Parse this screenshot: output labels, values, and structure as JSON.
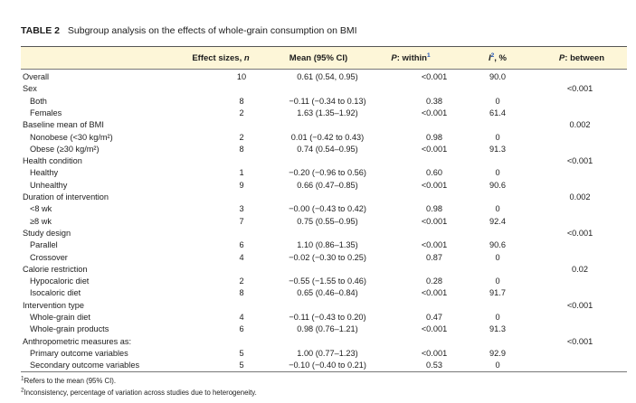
{
  "table": {
    "label": "TABLE 2",
    "caption": "Subgroup analysis on the effects of whole-grain consumption on BMI"
  },
  "header": {
    "effect_sizes": "Effect sizes, ",
    "effect_sizes_n": "n",
    "mean": "Mean (95% CI)",
    "p_within_p": "P",
    "p_within": ": within",
    "p_within_sup": "1",
    "i2_i": "I",
    "i2_sup": "2",
    "i2": ", %",
    "p_between_p": "P",
    "p_between": ": between"
  },
  "rows": [
    {
      "label": "Overall",
      "sub": false,
      "n": "10",
      "mean": "0.61 (0.54, 0.95)",
      "p_within": "<0.001",
      "i2": "90.0",
      "p_between": ""
    },
    {
      "label": "Sex",
      "sub": false,
      "n": "",
      "mean": "",
      "p_within": "",
      "i2": "",
      "p_between": "<0.001"
    },
    {
      "label": "Both",
      "sub": true,
      "n": "8",
      "mean": "−0.11 (−0.34 to 0.13)",
      "p_within": "0.38",
      "i2": "0",
      "p_between": ""
    },
    {
      "label": "Females",
      "sub": true,
      "n": "2",
      "mean": "1.63 (1.35–1.92)",
      "p_within": "<0.001",
      "i2": "61.4",
      "p_between": ""
    },
    {
      "label": "Baseline mean of BMI",
      "sub": false,
      "n": "",
      "mean": "",
      "p_within": "",
      "i2": "",
      "p_between": "0.002"
    },
    {
      "label": "Nonobese (<30 kg/m²)",
      "sub": true,
      "n": "2",
      "mean": "0.01 (−0.42 to 0.43)",
      "p_within": "0.98",
      "i2": "0",
      "p_between": ""
    },
    {
      "label": "Obese (≥30 kg/m²)",
      "sub": true,
      "n": "8",
      "mean": "0.74 (0.54–0.95)",
      "p_within": "<0.001",
      "i2": "91.3",
      "p_between": ""
    },
    {
      "label": "Health condition",
      "sub": false,
      "n": "",
      "mean": "",
      "p_within": "",
      "i2": "",
      "p_between": "<0.001"
    },
    {
      "label": "Healthy",
      "sub": true,
      "n": "1",
      "mean": "−0.20 (−0.96 to 0.56)",
      "p_within": "0.60",
      "i2": "0",
      "p_between": ""
    },
    {
      "label": "Unhealthy",
      "sub": true,
      "n": "9",
      "mean": "0.66 (0.47–0.85)",
      "p_within": "<0.001",
      "i2": "90.6",
      "p_between": ""
    },
    {
      "label": "Duration of intervention",
      "sub": false,
      "n": "",
      "mean": "",
      "p_within": "",
      "i2": "",
      "p_between": "0.002"
    },
    {
      "label": "<8 wk",
      "sub": true,
      "n": "3",
      "mean": "−0.00 (−0.43 to 0.42)",
      "p_within": "0.98",
      "i2": "0",
      "p_between": ""
    },
    {
      "label": "≥8 wk",
      "sub": true,
      "n": "7",
      "mean": "0.75 (0.55–0.95)",
      "p_within": "<0.001",
      "i2": "92.4",
      "p_between": ""
    },
    {
      "label": "Study design",
      "sub": false,
      "n": "",
      "mean": "",
      "p_within": "",
      "i2": "",
      "p_between": "<0.001"
    },
    {
      "label": "Parallel",
      "sub": true,
      "n": "6",
      "mean": "1.10 (0.86–1.35)",
      "p_within": "<0.001",
      "i2": "90.6",
      "p_between": ""
    },
    {
      "label": "Crossover",
      "sub": true,
      "n": "4",
      "mean": "−0.02 (−0.30 to 0.25)",
      "p_within": "0.87",
      "i2": "0",
      "p_between": ""
    },
    {
      "label": "Calorie restriction",
      "sub": false,
      "n": "",
      "mean": "",
      "p_within": "",
      "i2": "",
      "p_between": "0.02"
    },
    {
      "label": "Hypocaloric diet",
      "sub": true,
      "n": "2",
      "mean": "−0.55 (−1.55 to 0.46)",
      "p_within": "0.28",
      "i2": "0",
      "p_between": ""
    },
    {
      "label": "Isocaloric diet",
      "sub": true,
      "n": "8",
      "mean": "0.65 (0.46–0.84)",
      "p_within": "<0.001",
      "i2": "91.7",
      "p_between": ""
    },
    {
      "label": "Intervention type",
      "sub": false,
      "n": "",
      "mean": "",
      "p_within": "",
      "i2": "",
      "p_between": "<0.001"
    },
    {
      "label": "Whole-grain diet",
      "sub": true,
      "n": "4",
      "mean": "−0.11 (−0.43 to 0.20)",
      "p_within": "0.47",
      "i2": "0",
      "p_between": ""
    },
    {
      "label": "Whole-grain products",
      "sub": true,
      "n": "6",
      "mean": "0.98 (0.76–1.21)",
      "p_within": "<0.001",
      "i2": "91.3",
      "p_between": ""
    },
    {
      "label": "Anthropometric measures as:",
      "sub": false,
      "n": "",
      "mean": "",
      "p_within": "",
      "i2": "",
      "p_between": "<0.001"
    },
    {
      "label": "Primary outcome variables",
      "sub": true,
      "n": "5",
      "mean": "1.00 (0.77–1.23)",
      "p_within": "<0.001",
      "i2": "92.9",
      "p_between": ""
    },
    {
      "label": "Secondary outcome variables",
      "sub": true,
      "n": "5",
      "mean": "−0.10 (−0.40 to 0.21)",
      "p_within": "0.53",
      "i2": "0",
      "p_between": ""
    }
  ],
  "footnotes": [
    {
      "mark": "1",
      "text": "Refers to the mean (95% CI)."
    },
    {
      "mark": "2",
      "text": "Inconsistency, percentage of variation across studies due to heterogeneity."
    }
  ]
}
